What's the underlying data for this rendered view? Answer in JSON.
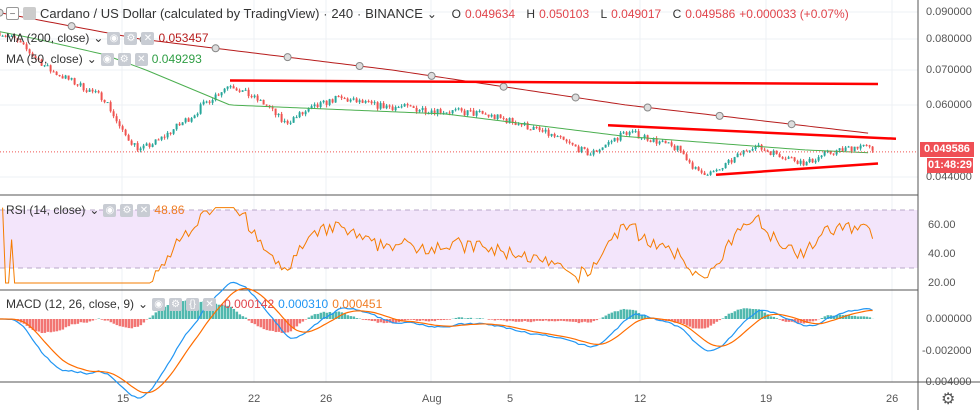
{
  "header": {
    "symbol": "Cardano / US Dollar (calculated by TradingView)",
    "interval": "240",
    "exchange": "BINANCE",
    "open_label": "O",
    "open": "0.049634",
    "high_label": "H",
    "high": "0.050103",
    "low_label": "L",
    "low": "0.049017",
    "close_label": "C",
    "close": "0.049586",
    "change": "+0.000033 (+0.07%)"
  },
  "indicators": {
    "ma200": {
      "label": "MA (200, close)",
      "value": "0.053457"
    },
    "ma50": {
      "label": "MA (50, close)",
      "value": "0.049293"
    },
    "rsi": {
      "label": "RSI (14, close)",
      "value": "48.86"
    },
    "macd": {
      "label": "MACD (12, 26, close, 9)",
      "hist": "-0.000142",
      "macd": "0.000310",
      "signal": "0.000451"
    }
  },
  "price_axis": [
    "0.090000",
    "0.080000",
    "0.070000",
    "0.060000",
    "0.044000"
  ],
  "last_price": "0.049586",
  "countdown": "01:48:29",
  "rsi_axis": [
    "60.00",
    "40.00",
    "20.00"
  ],
  "macd_axis": [
    "0.000000",
    "-0.002000",
    "-0.004000"
  ],
  "time_axis": [
    "15",
    "22",
    "26",
    "Aug",
    "5",
    "12",
    "19",
    "26"
  ],
  "colors": {
    "up": "#26a69a",
    "down": "#ef5350",
    "ma200": "#b71c1c",
    "ma50": "#4caf50",
    "rsi": "#f57c00",
    "trendline": "#f00",
    "macd": "#2196f3",
    "signal": "#ff6d00"
  },
  "chart_data": {
    "type": "candlestick",
    "interval": "240",
    "ylim": [
      0.042,
      0.092
    ],
    "close_path": [
      [
        "Jul 8",
        0.083
      ],
      [
        "Jul 9",
        0.08
      ],
      [
        "Jul 11",
        0.07
      ],
      [
        "Jul 14",
        0.062
      ],
      [
        "Jul 15",
        0.054
      ],
      [
        "Jul 16",
        0.05
      ],
      [
        "Jul 17",
        0.052
      ],
      [
        "Jul 19",
        0.058
      ],
      [
        "Jul 20",
        0.062
      ],
      [
        "Jul 21",
        0.066
      ],
      [
        "Jul 23",
        0.06
      ],
      [
        "Jul 24",
        0.056
      ],
      [
        "Jul 27",
        0.062
      ],
      [
        "Jul 29",
        0.06
      ],
      [
        "Aug 1",
        0.059
      ],
      [
        "Aug 4",
        0.058
      ],
      [
        "Aug 6",
        0.056
      ],
      [
        "Aug 8",
        0.053
      ],
      [
        "Aug 10",
        0.049
      ],
      [
        "Aug 12",
        0.054
      ],
      [
        "Aug 13",
        0.053
      ],
      [
        "Aug 15",
        0.05
      ],
      [
        "Aug 16",
        0.045
      ],
      [
        "Aug 17",
        0.045
      ],
      [
        "Aug 19",
        0.051
      ],
      [
        "Aug 22",
        0.047
      ],
      [
        "Aug 23",
        0.049
      ],
      [
        "Aug 25",
        0.051
      ],
      [
        "Aug 26",
        0.0496
      ]
    ],
    "ma200_path": [
      [
        "Jul 8",
        0.09
      ],
      [
        "Jul 16",
        0.08
      ],
      [
        "Jul 30",
        0.07
      ],
      [
        "Aug 12",
        0.06
      ],
      [
        "Aug 26",
        0.0535
      ]
    ],
    "ma50_path": [
      [
        "Jul 8",
        0.083
      ],
      [
        "Jul 14",
        0.075
      ],
      [
        "Jul 21",
        0.06
      ],
      [
        "Aug 2",
        0.058
      ],
      [
        "Aug 12",
        0.053
      ],
      [
        "Aug 22",
        0.05
      ],
      [
        "Aug 26",
        0.0493
      ]
    ],
    "trendlines": [
      [
        [
          "Jul 21",
          0.067
        ],
        [
          "Aug 26",
          0.066
        ]
      ],
      [
        [
          "Aug 11",
          0.0555
        ],
        [
          "Aug 27",
          0.0525
        ]
      ],
      [
        [
          "Aug 17",
          0.0445
        ],
        [
          "Aug 26",
          0.047
        ]
      ]
    ],
    "rsi_levels": [
      70,
      30
    ],
    "rsi_ylim": [
      15,
      75
    ],
    "macd_ylim": [
      -0.0042,
      0.001
    ]
  }
}
